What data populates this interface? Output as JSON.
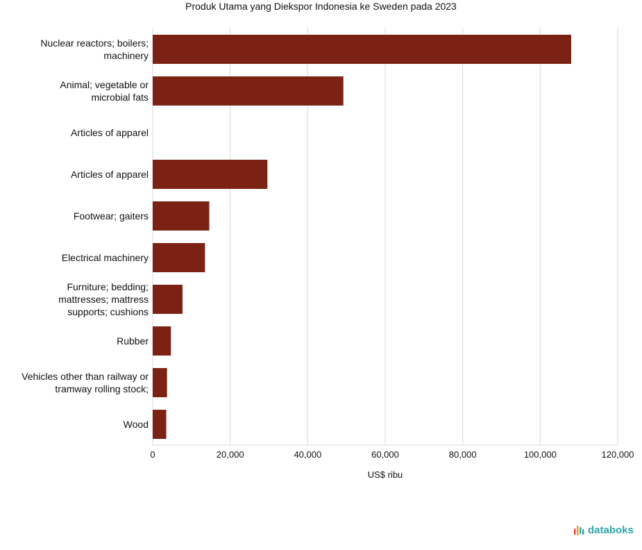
{
  "chart_data": {
    "type": "bar",
    "orientation": "horizontal",
    "title": "Produk Utama yang Diekspor Indonesia ke Sweden pada 2023",
    "xlabel": "US$ ribu",
    "ylabel": "",
    "categories": [
      "Nuclear reactors; boilers; machinery",
      "Animal; vegetable or microbial fats",
      "Articles of apparel",
      "Articles of apparel",
      "Footwear; gaiters",
      "Electrical machinery",
      "Furniture; bedding; mattresses; mattress supports; cushions",
      "Rubber",
      "Vehicles other than railway or tramway rolling stock;",
      "Wood"
    ],
    "category_lines": [
      [
        "Nuclear reactors; boilers;",
        "machinery"
      ],
      [
        "Animal; vegetable or",
        "microbial fats"
      ],
      [
        "Articles of apparel"
      ],
      [
        "Articles of apparel"
      ],
      [
        "Footwear; gaiters"
      ],
      [
        "Electrical machinery"
      ],
      [
        "Furniture; bedding;",
        "mattresses; mattress",
        "supports; cushions"
      ],
      [
        "Rubber"
      ],
      [
        "Vehicles other than railway or",
        "tramway rolling stock;"
      ],
      [
        "Wood"
      ]
    ],
    "values": [
      108000,
      49200,
      0,
      29600,
      14600,
      13500,
      7700,
      4700,
      3700,
      3500
    ],
    "xlim": [
      0,
      120000
    ],
    "xticks": [
      0,
      20000,
      40000,
      60000,
      80000,
      100000,
      120000
    ],
    "xtick_labels": [
      "0",
      "20,000",
      "40,000",
      "60,000",
      "80,000",
      "100,000",
      "120,000"
    ],
    "grid": true,
    "legend": "none",
    "bar_color": "#7b2214"
  },
  "brand": {
    "name": "databoks",
    "text_color": "#2fa6a6",
    "icon_colors": [
      "#e8473b",
      "#f29a2e",
      "#2fa6a6"
    ],
    "icon": "bars-logo-icon"
  }
}
